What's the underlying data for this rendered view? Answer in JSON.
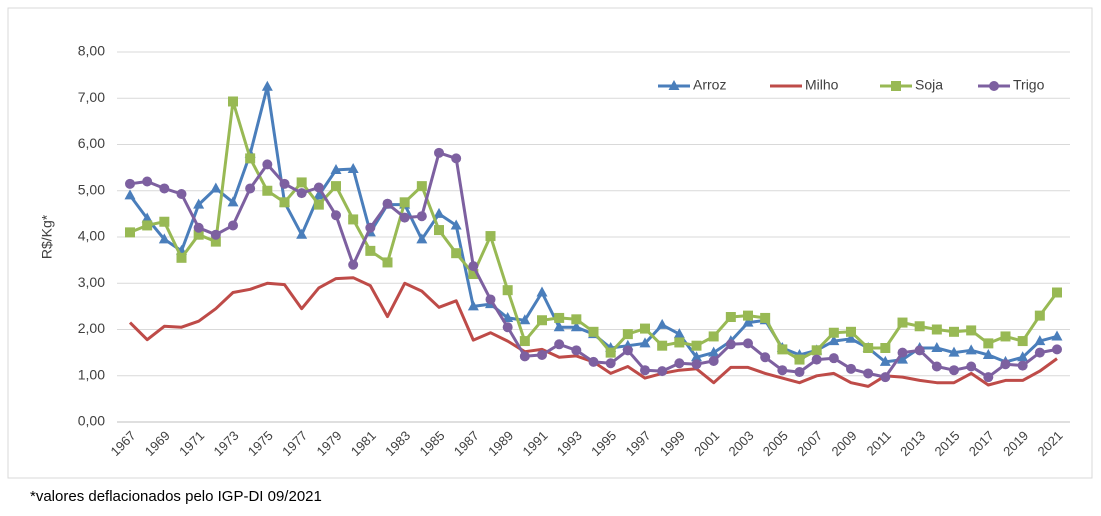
{
  "chart_data": {
    "type": "line",
    "y_label": "R$/Kg*",
    "footnote": "*valores deflacionados pelo IGP-DI 09/2021",
    "categories": [
      "1967",
      null,
      "1969",
      null,
      "1971",
      null,
      "1973",
      null,
      "1975",
      null,
      "1977",
      null,
      "1979",
      null,
      "1981",
      null,
      "1983",
      null,
      "1985",
      null,
      "1987",
      null,
      "1989",
      null,
      "1991",
      null,
      "1993",
      null,
      "1995",
      null,
      "1997",
      null,
      "1999",
      null,
      "2001",
      null,
      "2003",
      null,
      "2005",
      null,
      "2007",
      null,
      "2009",
      null,
      "2011",
      null,
      "2013",
      null,
      "2015",
      null,
      "2017",
      null,
      "2019",
      null,
      "2021"
    ],
    "series": [
      {
        "name": "Arroz",
        "color": "#4a7ebb",
        "marker": "triangle",
        "values": [
          4.9,
          4.4,
          3.95,
          3.7,
          4.7,
          5.05,
          4.75,
          5.8,
          7.25,
          4.75,
          4.05,
          4.9,
          5.45,
          5.47,
          4.1,
          4.7,
          4.7,
          3.95,
          4.5,
          4.25,
          2.5,
          2.55,
          2.25,
          2.2,
          2.8,
          2.05,
          2.05,
          1.9,
          1.6,
          1.65,
          1.7,
          2.1,
          1.9,
          1.4,
          1.5,
          1.75,
          2.15,
          2.2,
          1.6,
          1.45,
          1.55,
          1.75,
          1.8,
          1.6,
          1.3,
          1.35,
          1.6,
          1.6,
          1.5,
          1.55,
          1.45,
          1.3,
          1.4,
          1.75,
          1.85
        ]
      },
      {
        "name": "Milho",
        "color": "#be4b48",
        "marker": "none",
        "values": [
          2.15,
          1.78,
          2.07,
          2.05,
          2.18,
          2.45,
          2.8,
          2.87,
          3.0,
          2.97,
          2.45,
          2.9,
          3.1,
          3.12,
          2.95,
          2.28,
          3.0,
          2.83,
          2.48,
          2.62,
          1.77,
          1.93,
          1.75,
          1.52,
          1.57,
          1.4,
          1.43,
          1.3,
          1.05,
          1.2,
          0.95,
          1.05,
          1.12,
          1.15,
          0.85,
          1.18,
          1.18,
          1.05,
          0.95,
          0.85,
          1.0,
          1.05,
          0.85,
          0.77,
          1.0,
          0.97,
          0.9,
          0.85,
          0.85,
          1.05,
          0.8,
          0.9,
          0.9,
          1.1,
          1.37
        ]
      },
      {
        "name": "Soja",
        "color": "#98b954",
        "marker": "square",
        "values": [
          4.1,
          4.25,
          4.33,
          3.55,
          4.05,
          3.9,
          6.93,
          5.7,
          5.0,
          4.75,
          5.18,
          4.7,
          5.1,
          4.38,
          3.7,
          3.45,
          4.75,
          5.1,
          4.15,
          3.65,
          3.2,
          4.02,
          2.85,
          1.75,
          2.2,
          2.25,
          2.22,
          1.95,
          1.5,
          1.9,
          2.02,
          1.65,
          1.72,
          1.65,
          1.85,
          2.27,
          2.3,
          2.25,
          1.57,
          1.35,
          1.55,
          1.93,
          1.95,
          1.6,
          1.6,
          2.15,
          2.07,
          2.0,
          1.95,
          1.98,
          1.7,
          1.85,
          1.75,
          2.3,
          2.8
        ]
      },
      {
        "name": "Trigo",
        "color": "#7d60a0",
        "marker": "circle",
        "values": [
          5.15,
          5.2,
          5.05,
          4.93,
          4.2,
          4.05,
          4.25,
          5.05,
          5.57,
          5.15,
          4.95,
          5.07,
          4.47,
          3.4,
          4.2,
          4.72,
          4.42,
          4.45,
          5.82,
          5.7,
          3.37,
          2.65,
          2.05,
          1.42,
          1.45,
          1.68,
          1.55,
          1.3,
          1.27,
          1.55,
          1.12,
          1.1,
          1.27,
          1.25,
          1.32,
          1.68,
          1.7,
          1.4,
          1.12,
          1.08,
          1.35,
          1.38,
          1.15,
          1.05,
          0.97,
          1.5,
          1.55,
          1.2,
          1.12,
          1.2,
          0.97,
          1.25,
          1.22,
          1.5,
          1.57
        ]
      }
    ],
    "ylim": [
      0,
      8
    ],
    "yticks": [
      {
        "value": 0,
        "label": "0,00"
      },
      {
        "value": 1,
        "label": "1,00"
      },
      {
        "value": 2,
        "label": "2,00"
      },
      {
        "value": 3,
        "label": "3,00"
      },
      {
        "value": 4,
        "label": "4,00"
      },
      {
        "value": 5,
        "label": "5,00"
      },
      {
        "value": 6,
        "label": "6,00"
      },
      {
        "value": 7,
        "label": "7,00"
      },
      {
        "value": 8,
        "label": "8,00"
      }
    ],
    "grid": true,
    "legend": "upper right"
  }
}
